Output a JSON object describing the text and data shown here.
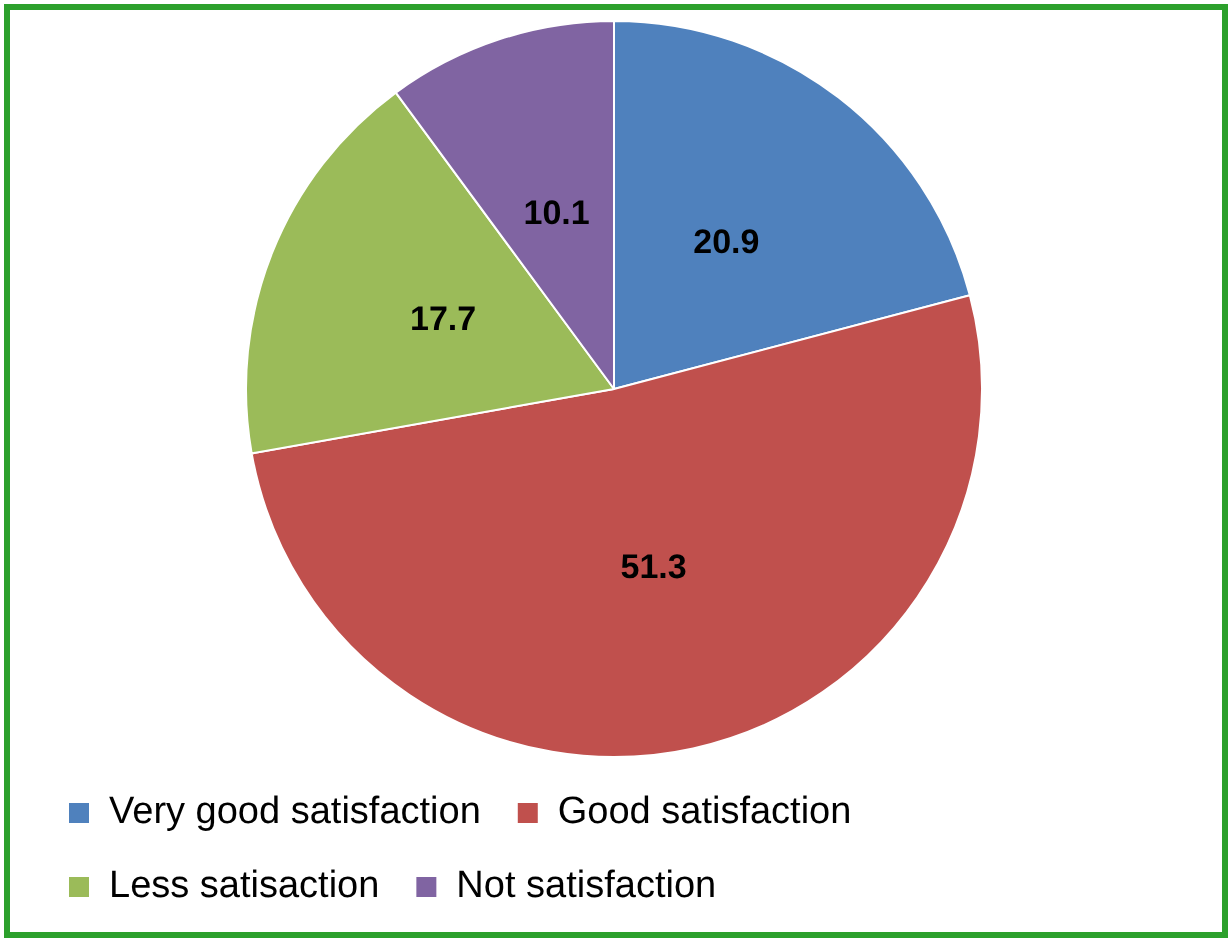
{
  "chart_data": {
    "type": "pie",
    "categories": [
      "Very good satisfaction",
      "Good satisfaction",
      "Less satisaction",
      "Not satisfaction"
    ],
    "values": [
      20.9,
      51.3,
      17.7,
      10.1
    ],
    "colors": [
      "#4f81bd",
      "#c0504d",
      "#9bbb59",
      "#8064a2"
    ],
    "data_labels": true,
    "legend": "bottom"
  }
}
